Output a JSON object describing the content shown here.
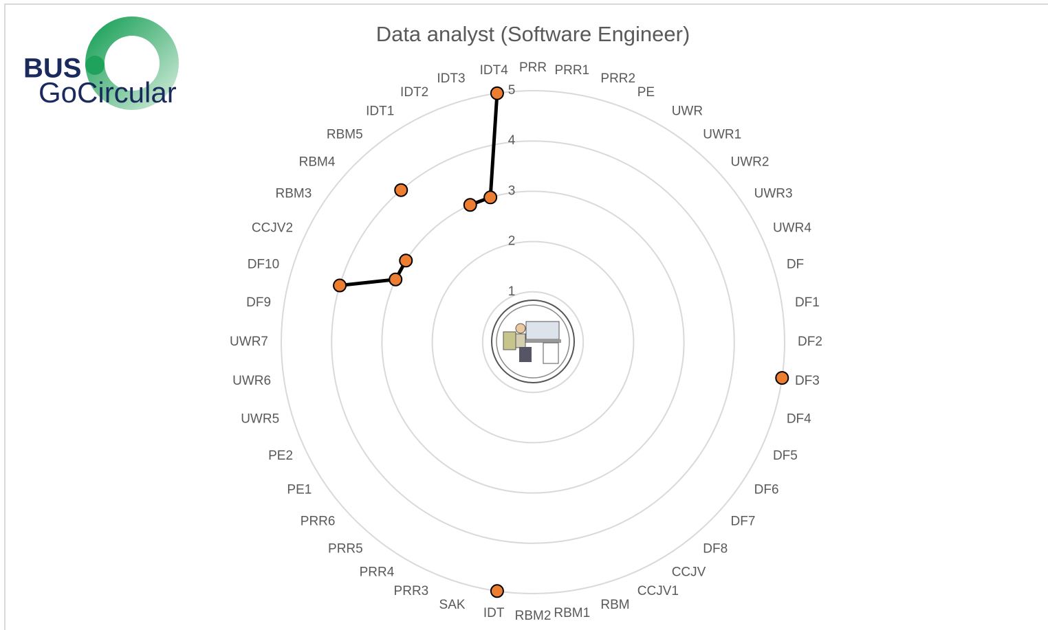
{
  "logo": {
    "line1": "BUS",
    "line2": "GoCircular"
  },
  "chart_data": {
    "type": "radar",
    "title": "Data analyst (Software Engineer)",
    "categories": [
      "PRR",
      "PRR1",
      "PRR2",
      "PE",
      "UWR",
      "UWR1",
      "UWR2",
      "UWR3",
      "UWR4",
      "DF",
      "DF1",
      "DF2",
      "DF3",
      "DF4",
      "DF5",
      "DF6",
      "DF7",
      "DF8",
      "CCJV",
      "CCJV1",
      "RBM",
      "RBM1",
      "RBM2",
      "IDT",
      "SAK",
      "PRR3",
      "PRR4",
      "PRR5",
      "PRR6",
      "PE1",
      "PE2",
      "UWR5",
      "UWR6",
      "UWR7",
      "DF9",
      "DF10",
      "CCJV2",
      "RBM3",
      "RBM4",
      "RBM5",
      "IDT1",
      "IDT2",
      "IDT3",
      "IDT4"
    ],
    "values": [
      null,
      null,
      null,
      null,
      null,
      null,
      null,
      null,
      null,
      null,
      null,
      null,
      5,
      null,
      null,
      null,
      null,
      null,
      null,
      null,
      null,
      null,
      null,
      5,
      null,
      null,
      null,
      null,
      null,
      null,
      null,
      null,
      null,
      null,
      null,
      4,
      3,
      3,
      null,
      4,
      null,
      3,
      3,
      5
    ],
    "color": "#000000",
    "marker_color": "#ed7d31",
    "ylim": [
      0,
      5
    ],
    "yticks": [
      1,
      2,
      3,
      4,
      5
    ],
    "grid": true
  }
}
